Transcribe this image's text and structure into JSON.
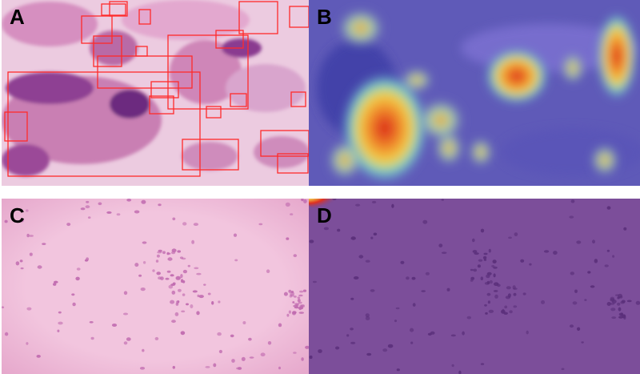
{
  "panels": [
    {
      "id": "A",
      "label": "A",
      "description_kind": "cytology-image-with-detection-boxes",
      "box_color": "#ff2a2a"
    },
    {
      "id": "B",
      "label": "B",
      "description_kind": "attention-heatmap-overlay"
    },
    {
      "id": "C",
      "label": "C",
      "description_kind": "sparse-cytology-image"
    },
    {
      "id": "D",
      "label": "D",
      "description_kind": "heatmap-overlay-no-activation"
    }
  ],
  "colors": {
    "stain_pink": "#e9a3c9",
    "stain_purple": "#7a2f8f",
    "heat_low": "#4a55c8",
    "heat_high": "#e03020",
    "overlay_purple": "#7a4a97"
  }
}
